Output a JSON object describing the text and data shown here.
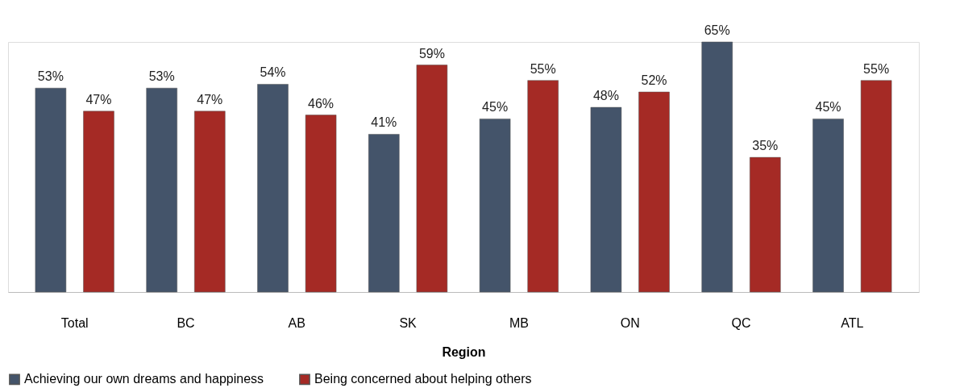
{
  "chart_data": {
    "type": "bar",
    "categories": [
      "Total",
      "BC",
      "AB",
      "SK",
      "MB",
      "ON",
      "QC",
      "ATL"
    ],
    "xlabel": "Region",
    "series": [
      {
        "name": "Achieving our own dreams and happiness",
        "color": "#44546a",
        "values": [
          53,
          53,
          54,
          41,
          45,
          48,
          65,
          45
        ],
        "value_labels": [
          "53%",
          "53%",
          "54%",
          "41%",
          "45%",
          "48%",
          "65%",
          "45%"
        ]
      },
      {
        "name": "Being concerned about helping others",
        "color": "#a52a25",
        "values": [
          47,
          47,
          46,
          59,
          55,
          52,
          35,
          55
        ],
        "value_labels": [
          "47%",
          "47%",
          "46%",
          "59%",
          "55%",
          "52%",
          "35%",
          "55%"
        ]
      }
    ],
    "legend": "bottom",
    "grid": false
  }
}
